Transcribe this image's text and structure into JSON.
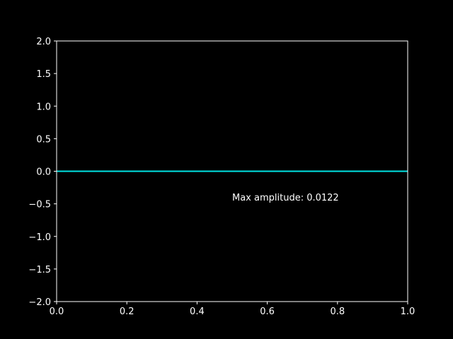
{
  "chart_data": {
    "type": "line",
    "title": "",
    "xlabel": "",
    "ylabel": "",
    "xlim": [
      0.0,
      1.0
    ],
    "ylim": [
      -2.0,
      2.0
    ],
    "x_ticks": [
      0.0,
      0.2,
      0.4,
      0.6,
      0.8,
      1.0
    ],
    "x_tick_labels": [
      "0.0",
      "0.2",
      "0.4",
      "0.6",
      "0.8",
      "1.0"
    ],
    "y_ticks": [
      -2.0,
      -1.5,
      -1.0,
      -0.5,
      0.0,
      0.5,
      1.0,
      1.5,
      2.0
    ],
    "y_tick_labels": [
      "−2.0",
      "−1.5",
      "−1.0",
      "−0.5",
      "0.0",
      "0.5",
      "1.0",
      "1.5",
      "2.0"
    ],
    "grid": false,
    "background": "#000000",
    "axis_color": "#ffffff",
    "series": [
      {
        "color": "#00e5e5",
        "x": [
          0.0,
          0.1,
          0.2,
          0.3,
          0.4,
          0.5,
          0.6,
          0.7,
          0.8,
          0.9,
          1.0
        ],
        "y": [
          0.0,
          0.0,
          0.0,
          0.0,
          0.0,
          0.0,
          0.0,
          0.0,
          0.0,
          0.0,
          0.0
        ]
      }
    ],
    "annotations": [
      {
        "text": "Max amplitude: 0.0122",
        "x": 0.5,
        "y": -0.45
      }
    ]
  }
}
